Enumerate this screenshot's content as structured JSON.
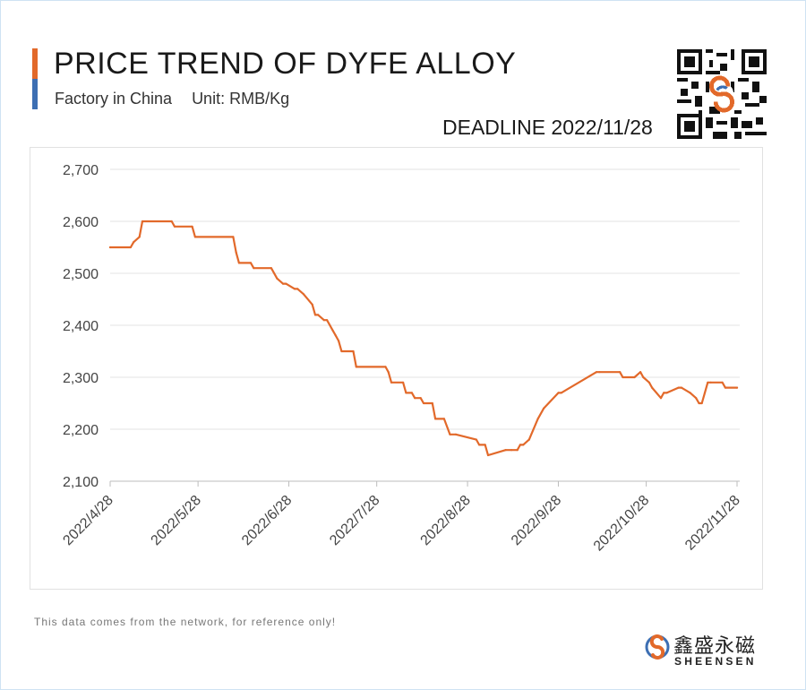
{
  "header": {
    "title": "PRICE TREND OF DYFE ALLOY",
    "factory": "Factory in China",
    "unit": "Unit: RMB/Kg",
    "deadline": "DEADLINE 2022/11/28",
    "accent_colors": [
      "#e2692a",
      "#3d6fb3"
    ]
  },
  "footer": {
    "note": "This data comes from the network, for reference only!",
    "logo_cn": "鑫盛永磁",
    "logo_en": "SHEENSEN"
  },
  "chart_data": {
    "type": "line",
    "title": "PRICE TREND OF DYFE ALLOY",
    "xlabel": "",
    "ylabel": "",
    "ylim": [
      2100,
      2700
    ],
    "yticks": [
      2100,
      2200,
      2300,
      2400,
      2500,
      2600,
      2700
    ],
    "ytick_labels": [
      "2,100",
      "2,200",
      "2,300",
      "2,400",
      "2,500",
      "2,600",
      "2,700"
    ],
    "xlim": [
      "2022/4/28",
      "2022/11/28"
    ],
    "xtick_labels": [
      "2022/4/28",
      "2022/5/28",
      "2022/6/28",
      "2022/7/28",
      "2022/8/28",
      "2022/9/28",
      "2022/10/28",
      "2022/11/28"
    ],
    "grid": true,
    "line_color": "#e2692a",
    "series": [
      {
        "x": [
          "2022/4/28",
          "2022/5/5",
          "2022/5/6",
          "2022/5/8",
          "2022/5/9",
          "2022/5/19",
          "2022/5/20",
          "2022/5/26",
          "2022/5/27",
          "2022/6/9",
          "2022/6/10",
          "2022/6/11",
          "2022/6/15",
          "2022/6/16",
          "2022/6/22",
          "2022/6/24",
          "2022/6/26",
          "2022/6/27",
          "2022/6/30",
          "2022/7/1",
          "2022/7/3",
          "2022/7/6",
          "2022/7/7",
          "2022/7/8",
          "2022/7/10",
          "2022/7/11",
          "2022/7/13",
          "2022/7/14",
          "2022/7/15",
          "2022/7/16",
          "2022/7/20",
          "2022/7/21",
          "2022/7/31",
          "2022/8/1",
          "2022/8/2",
          "2022/8/6",
          "2022/8/7",
          "2022/8/9",
          "2022/8/10",
          "2022/8/12",
          "2022/8/13",
          "2022/8/16",
          "2022/8/17",
          "2022/8/20",
          "2022/8/22",
          "2022/8/24",
          "2022/8/31",
          "2022/9/1",
          "2022/9/3",
          "2022/9/4",
          "2022/9/10",
          "2022/9/12",
          "2022/9/14",
          "2022/9/15",
          "2022/9/16",
          "2022/9/18",
          "2022/9/21",
          "2022/9/23",
          "2022/9/28",
          "2022/9/29",
          "2022/10/11",
          "2022/10/12",
          "2022/10/19",
          "2022/10/20",
          "2022/10/24",
          "2022/10/26",
          "2022/10/27",
          "2022/10/29",
          "2022/10/30",
          "2022/11/2",
          "2022/11/3",
          "2022/11/4",
          "2022/11/8",
          "2022/11/9",
          "2022/11/12",
          "2022/11/14",
          "2022/11/15",
          "2022/11/16",
          "2022/11/17",
          "2022/11/18",
          "2022/11/19",
          "2022/11/23",
          "2022/11/24",
          "2022/11/28"
        ],
        "values": [
          2550,
          2550,
          2560,
          2570,
          2600,
          2600,
          2590,
          2590,
          2570,
          2570,
          2540,
          2520,
          2520,
          2510,
          2510,
          2490,
          2480,
          2480,
          2470,
          2470,
          2460,
          2440,
          2420,
          2420,
          2410,
          2410,
          2390,
          2380,
          2370,
          2350,
          2350,
          2320,
          2320,
          2310,
          2290,
          2290,
          2270,
          2270,
          2260,
          2260,
          2250,
          2250,
          2220,
          2220,
          2190,
          2190,
          2180,
          2170,
          2170,
          2150,
          2160,
          2160,
          2160,
          2170,
          2170,
          2180,
          2220,
          2240,
          2270,
          2270,
          2310,
          2310,
          2310,
          2300,
          2300,
          2310,
          2300,
          2290,
          2280,
          2260,
          2270,
          2270,
          2280,
          2280,
          2270,
          2260,
          2250,
          2250,
          2270,
          2290,
          2290,
          2290,
          2280,
          2280
        ]
      }
    ]
  }
}
